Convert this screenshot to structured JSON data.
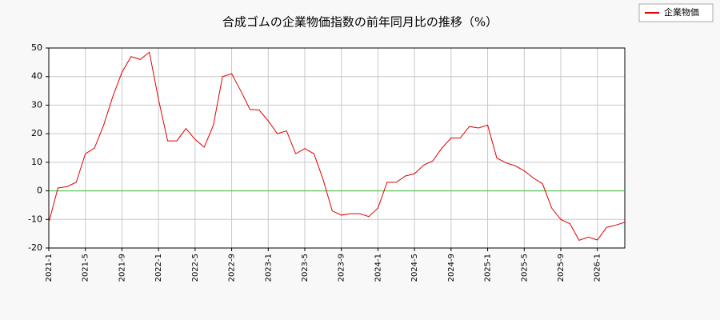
{
  "chart_data": {
    "type": "line",
    "title": "合成ゴムの企業物価指数の前年同月比の推移（%）",
    "categories": [
      "2021-1",
      null,
      null,
      null,
      "2021-5",
      null,
      null,
      null,
      "2021-9",
      null,
      null,
      null,
      "2022-1",
      null,
      null,
      null,
      "2022-5",
      null,
      null,
      null,
      "2022-9",
      null,
      null,
      null,
      "2023-1",
      null,
      null,
      null,
      "2023-5",
      null,
      null,
      null,
      "2023-9",
      null,
      null,
      null,
      "2024-1",
      null,
      null,
      null,
      "2024-5",
      null,
      null,
      null,
      "2024-9",
      null,
      null,
      null,
      "2025-1",
      null,
      null,
      null,
      "2025-5",
      null,
      null,
      null,
      "2025-9",
      null,
      null,
      null,
      "2026-1",
      null,
      null,
      null
    ],
    "series": [
      {
        "name": "企業物価",
        "color": "#e00000",
        "values": [
          -11,
          1,
          1.5,
          3,
          13,
          15,
          23,
          33,
          41.5,
          47,
          46,
          48.5,
          32,
          17.5,
          17.5,
          21.8,
          18,
          15.3,
          23,
          40,
          41,
          35,
          28.5,
          28.3,
          24.5,
          20,
          21,
          13,
          14.8,
          13,
          4,
          -7,
          -8.5,
          -8,
          -8,
          -9,
          -6,
          3,
          3,
          5.2,
          6,
          9,
          10.5,
          15,
          18.5,
          18.5,
          22.5,
          22,
          23,
          11.5,
          9.8,
          8.8,
          7,
          4.5,
          2.5,
          -6,
          -10,
          -11.5,
          -17.3,
          -16.2,
          -17.2,
          -12.8,
          -12,
          -11
        ]
      }
    ],
    "ylim": [
      -20,
      50
    ],
    "yticks": [
      -20,
      -10,
      0,
      10,
      20,
      30,
      40,
      50
    ],
    "hline": 0,
    "hline_color": "#40c040",
    "grid": true,
    "legend": "top-right"
  }
}
